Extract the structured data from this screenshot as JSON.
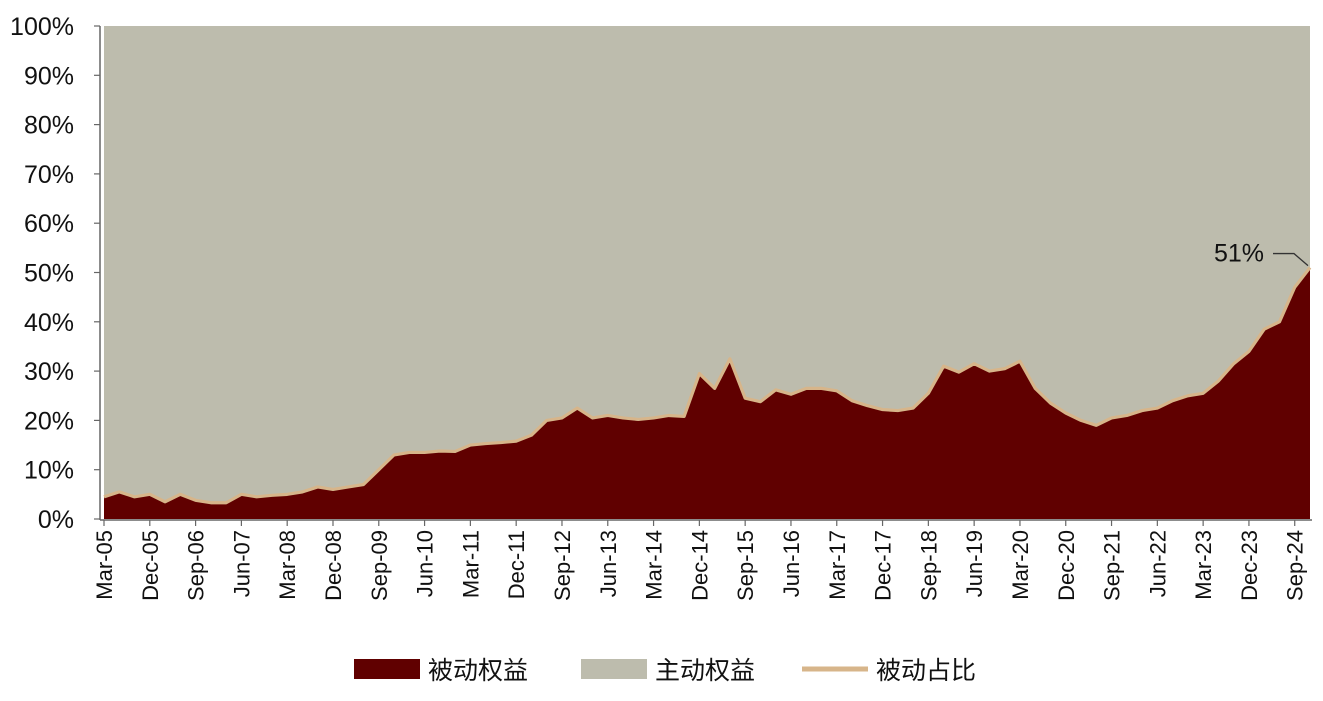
{
  "colors": {
    "passive_fill": "#600000",
    "active_fill": "#bdbcad",
    "share_line": "#d7b58a",
    "axis": "#666666"
  },
  "chart_data": {
    "type": "area",
    "stacked": true,
    "title": "",
    "xlabel": "",
    "ylabel": "",
    "ylim": [
      0,
      100
    ],
    "y_ticks": [
      "0%",
      "10%",
      "20%",
      "30%",
      "40%",
      "50%",
      "60%",
      "70%",
      "80%",
      "90%",
      "100%"
    ],
    "x_tick_labels": [
      "Mar-05",
      "Dec-05",
      "Sep-06",
      "Jun-07",
      "Mar-08",
      "Dec-08",
      "Sep-09",
      "Jun-10",
      "Mar-11",
      "Dec-11",
      "Sep-12",
      "Jun-13",
      "Mar-14",
      "Dec-14",
      "Sep-15",
      "Jun-16",
      "Mar-17",
      "Dec-17",
      "Sep-18",
      "Jun-19",
      "Mar-20",
      "Dec-20",
      "Sep-21",
      "Jun-22",
      "Mar-23",
      "Dec-23",
      "Sep-24"
    ],
    "x_period": "quarterly",
    "x_start": "Mar-05",
    "x_end": "Dec-24",
    "series": [
      {
        "name": "被动权益",
        "kind": "area",
        "values": [
          4.5,
          5.5,
          4.5,
          5.0,
          3.5,
          5.0,
          3.8,
          3.3,
          3.3,
          5.0,
          4.5,
          4.8,
          5.0,
          5.5,
          6.5,
          6.0,
          6.5,
          7.0,
          10.0,
          13.0,
          13.5,
          13.5,
          13.8,
          13.7,
          15.0,
          15.3,
          15.5,
          15.8,
          17.0,
          20.0,
          20.5,
          22.5,
          20.5,
          21.0,
          20.5,
          20.2,
          20.5,
          21.0,
          20.8,
          29.5,
          26.5,
          32.5,
          24.5,
          23.8,
          26.2,
          25.3,
          26.5,
          26.5,
          26.0,
          24.0,
          23.0,
          22.2,
          22.0,
          22.5,
          25.5,
          31.0,
          29.8,
          31.5,
          30.0,
          30.5,
          32.0,
          26.5,
          23.5,
          21.5,
          20.0,
          19.0,
          20.5,
          21.0,
          22.0,
          22.5,
          24.0,
          25.0,
          25.5,
          28.0,
          31.5,
          34.0,
          38.5,
          40.0,
          47.0,
          51.0
        ]
      },
      {
        "name": "主动权益",
        "kind": "area",
        "fill_to": 100
      },
      {
        "name": "被动占比",
        "kind": "line",
        "same_values_as": "被动权益"
      }
    ],
    "annotations": [
      {
        "text": "51%",
        "at": "Dec-24",
        "value": 51
      }
    ],
    "legend": {
      "placement": "bottom-center",
      "items": [
        "被动权益",
        "主动权益",
        "被动占比"
      ]
    },
    "grid": false
  }
}
